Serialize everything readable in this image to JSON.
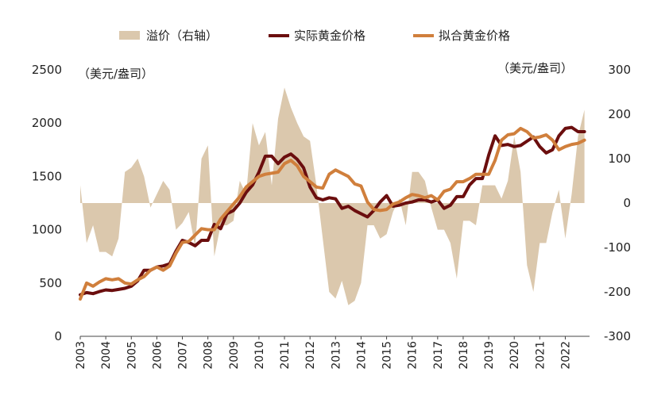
{
  "chart_data": {
    "type": "line",
    "left_axis": {
      "unit": "（美元/盎司）",
      "ticks": [
        "2500",
        "2000",
        "1500",
        "1000",
        "500",
        "0"
      ],
      "ylim": [
        0,
        2500
      ]
    },
    "right_axis": {
      "unit": "（美元/盎司）",
      "ticks": [
        "300",
        "200",
        "100",
        "0",
        "-100",
        "-200",
        "-300"
      ],
      "ylim": [
        -300,
        300
      ]
    },
    "x_ticks": [
      "2003",
      "2004",
      "2005",
      "2006",
      "2007",
      "2008",
      "2009",
      "2010",
      "2011",
      "2012",
      "2013",
      "2014",
      "2015",
      "2016",
      "2017",
      "2018",
      "2019",
      "2020",
      "2021",
      "2022"
    ],
    "xlim": [
      2003.0,
      2022.95
    ],
    "legend": [
      "溢价（右轴）",
      "实际黄金价格",
      "拟合黄金价格"
    ],
    "colors": {
      "premium": "#dbc8ad",
      "actual": "#6b0e0e",
      "fitted": "#d07f3c"
    },
    "series": [
      {
        "name": "溢价（右轴）",
        "axis": "right",
        "kind": "area",
        "x": [
          2003.0,
          2003.25,
          2003.5,
          2003.75,
          2004.0,
          2004.25,
          2004.5,
          2004.75,
          2005.0,
          2005.25,
          2005.5,
          2005.75,
          2006.0,
          2006.25,
          2006.5,
          2006.75,
          2007.0,
          2007.25,
          2007.5,
          2007.75,
          2008.0,
          2008.25,
          2008.5,
          2008.75,
          2009.0,
          2009.25,
          2009.5,
          2009.75,
          2010.0,
          2010.25,
          2010.5,
          2010.75,
          2011.0,
          2011.25,
          2011.5,
          2011.75,
          2012.0,
          2012.25,
          2012.5,
          2012.75,
          2013.0,
          2013.25,
          2013.5,
          2013.75,
          2014.0,
          2014.25,
          2014.5,
          2014.75,
          2015.0,
          2015.25,
          2015.5,
          2015.75,
          2016.0,
          2016.25,
          2016.5,
          2016.75,
          2017.0,
          2017.25,
          2017.5,
          2017.75,
          2018.0,
          2018.25,
          2018.5,
          2018.75,
          2019.0,
          2019.25,
          2019.5,
          2019.75,
          2020.0,
          2020.25,
          2020.5,
          2020.75,
          2021.0,
          2021.25,
          2021.5,
          2021.75,
          2022.0,
          2022.25,
          2022.5,
          2022.75
        ],
        "values": [
          40,
          -90,
          -50,
          -110,
          -110,
          -120,
          -80,
          70,
          80,
          100,
          60,
          -10,
          20,
          50,
          30,
          -60,
          -45,
          -20,
          -100,
          100,
          130,
          -120,
          -50,
          -50,
          -40,
          50,
          20,
          180,
          130,
          160,
          40,
          190,
          260,
          215,
          180,
          150,
          140,
          40,
          -80,
          -200,
          -215,
          -175,
          -230,
          -220,
          -180,
          -50,
          -50,
          -80,
          -70,
          -20,
          10,
          -50,
          70,
          70,
          50,
          -10,
          -60,
          -60,
          -90,
          -170,
          -40,
          -40,
          -50,
          40,
          40,
          40,
          10,
          50,
          150,
          70,
          -140,
          -200,
          -90,
          -90,
          -20,
          30,
          -80,
          20,
          150,
          210
        ]
      },
      {
        "name": "实际黄金价格",
        "axis": "left",
        "kind": "line",
        "x": [
          2003.0,
          2003.25,
          2003.5,
          2003.75,
          2004.0,
          2004.25,
          2004.5,
          2004.75,
          2005.0,
          2005.25,
          2005.5,
          2005.75,
          2006.0,
          2006.25,
          2006.5,
          2006.75,
          2007.0,
          2007.25,
          2007.5,
          2007.75,
          2008.0,
          2008.25,
          2008.5,
          2008.75,
          2009.0,
          2009.25,
          2009.5,
          2009.75,
          2010.0,
          2010.25,
          2010.5,
          2010.75,
          2011.0,
          2011.25,
          2011.5,
          2011.75,
          2012.0,
          2012.25,
          2012.5,
          2012.75,
          2013.0,
          2013.25,
          2013.5,
          2013.75,
          2014.0,
          2014.25,
          2014.5,
          2014.75,
          2015.0,
          2015.25,
          2015.5,
          2015.75,
          2016.0,
          2016.25,
          2016.5,
          2016.75,
          2017.0,
          2017.25,
          2017.5,
          2017.75,
          2018.0,
          2018.25,
          2018.5,
          2018.75,
          2019.0,
          2019.25,
          2019.5,
          2019.75,
          2020.0,
          2020.25,
          2020.5,
          2020.75,
          2021.0,
          2021.25,
          2021.5,
          2021.75,
          2022.0,
          2022.25,
          2022.5,
          2022.75
        ],
        "values": [
          390,
          410,
          400,
          420,
          435,
          430,
          440,
          450,
          470,
          520,
          620,
          620,
          650,
          660,
          680,
          800,
          900,
          880,
          850,
          900,
          900,
          1050,
          1010,
          1150,
          1180,
          1250,
          1350,
          1420,
          1540,
          1690,
          1690,
          1620,
          1680,
          1710,
          1660,
          1580,
          1400,
          1300,
          1280,
          1300,
          1290,
          1200,
          1220,
          1180,
          1150,
          1120,
          1180,
          1260,
          1320,
          1220,
          1230,
          1250,
          1260,
          1280,
          1280,
          1260,
          1280,
          1200,
          1230,
          1310,
          1310,
          1420,
          1480,
          1480,
          1700,
          1880,
          1790,
          1800,
          1780,
          1790,
          1830,
          1870,
          1780,
          1720,
          1750,
          1880,
          1950,
          1960,
          1920,
          1920
        ]
      },
      {
        "name": "拟合黄金价格",
        "axis": "left",
        "kind": "line",
        "x": [
          2003.0,
          2003.25,
          2003.5,
          2003.75,
          2004.0,
          2004.25,
          2004.5,
          2004.75,
          2005.0,
          2005.25,
          2005.5,
          2005.75,
          2006.0,
          2006.25,
          2006.5,
          2006.75,
          2007.0,
          2007.25,
          2007.5,
          2007.75,
          2008.0,
          2008.25,
          2008.5,
          2008.75,
          2009.0,
          2009.25,
          2009.5,
          2009.75,
          2010.0,
          2010.25,
          2010.5,
          2010.75,
          2011.0,
          2011.25,
          2011.5,
          2011.75,
          2012.0,
          2012.25,
          2012.5,
          2012.75,
          2013.0,
          2013.25,
          2013.5,
          2013.75,
          2014.0,
          2014.25,
          2014.5,
          2014.75,
          2015.0,
          2015.25,
          2015.5,
          2015.75,
          2016.0,
          2016.25,
          2016.5,
          2016.75,
          2017.0,
          2017.25,
          2017.5,
          2017.75,
          2018.0,
          2018.25,
          2018.5,
          2018.75,
          2019.0,
          2019.25,
          2019.5,
          2019.75,
          2020.0,
          2020.25,
          2020.5,
          2020.75,
          2021.0,
          2021.25,
          2021.5,
          2021.75,
          2022.0,
          2022.25,
          2022.5,
          2022.75
        ],
        "values": [
          350,
          500,
          470,
          510,
          540,
          530,
          540,
          500,
          490,
          530,
          560,
          620,
          650,
          620,
          660,
          780,
          880,
          890,
          950,
          1010,
          1000,
          1000,
          1100,
          1170,
          1240,
          1310,
          1400,
          1450,
          1500,
          1520,
          1530,
          1540,
          1620,
          1650,
          1600,
          1500,
          1450,
          1400,
          1390,
          1520,
          1560,
          1530,
          1500,
          1430,
          1410,
          1260,
          1190,
          1180,
          1190,
          1240,
          1260,
          1300,
          1330,
          1320,
          1300,
          1320,
          1280,
          1360,
          1380,
          1450,
          1450,
          1480,
          1520,
          1520,
          1520,
          1650,
          1840,
          1890,
          1900,
          1950,
          1920,
          1860,
          1870,
          1890,
          1840,
          1750,
          1780,
          1800,
          1810,
          1840
        ]
      }
    ]
  }
}
